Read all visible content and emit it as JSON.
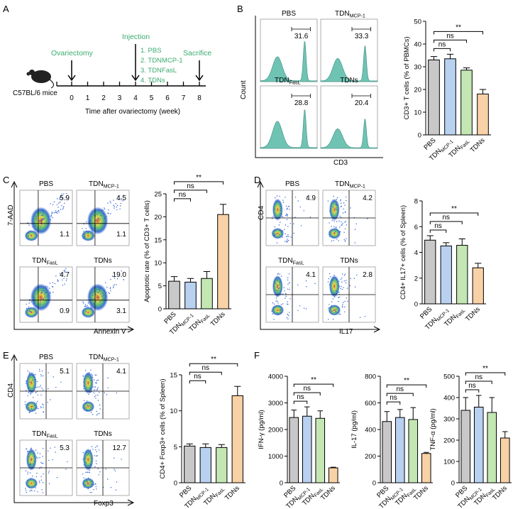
{
  "panels": {
    "A": "A",
    "B": "B",
    "C": "C",
    "D": "D",
    "E": "E",
    "F": "F"
  },
  "colors": {
    "pbs": "#c8c8c8",
    "mcp": "#b8d1f0",
    "fasl": "#c3e6b3",
    "tdn": "#f8d1a6",
    "green": "#3bab6f",
    "hist": "#6fc3b3"
  },
  "timeline": {
    "ticks": [
      "0",
      "1",
      "2",
      "3",
      "4",
      "5",
      "6",
      "7",
      "8"
    ],
    "xlabel": "Time after ovariectomy (week)",
    "mice": "C57BL/6 mice",
    "ovariectomy": "Ovariectomy",
    "injection": "Injection",
    "sacrifice": "Sacrifice",
    "groups": [
      "1. PBS",
      "2. TDNMCP-1",
      "3. TDNFasL",
      "4. TDNs"
    ]
  },
  "labels": {
    "pbs": "PBS",
    "tdn_base": "TDN",
    "mcp_sub": "MCP-1",
    "fasl_sub": "FasL",
    "tdns": "TDNs"
  },
  "flowB": {
    "ylabel": "Count",
    "xlabel": "CD3",
    "values": [
      "31.6",
      "33.3",
      "28.8",
      "20.4"
    ]
  },
  "flowC": {
    "ylabel": "7-AAD",
    "xlabel": "Annexin V",
    "pbs": [
      "5.9",
      "1.1"
    ],
    "mcp": [
      "4.5",
      "1.1"
    ],
    "fasl": [
      "4.7",
      "0.9"
    ],
    "tdn": [
      "19.0",
      "3.1"
    ]
  },
  "flowD": {
    "ylabel": "CD4",
    "xlabel": "IL17",
    "values": [
      "4.9",
      "4.2",
      "4.1",
      "2.8"
    ]
  },
  "flowE": {
    "ylabel": "CD4",
    "xlabel": "Foxp3",
    "values": [
      "5.1",
      "4.1",
      "5.3",
      "12.7"
    ]
  },
  "sig": {
    "ns": "ns",
    "star": "**"
  },
  "chart_data": [
    {
      "id": "B",
      "type": "bar",
      "categories": [
        "PBS",
        "TDNMCP-1",
        "TDNFasL",
        "TDNs"
      ],
      "values": [
        33,
        33.5,
        28.5,
        18
      ],
      "errors": [
        1.5,
        2,
        1,
        2
      ],
      "ylabel": "CD3+ T cells (% of PBMCs)",
      "ylim": [
        0,
        50
      ],
      "yticks": [
        "0",
        "10",
        "20",
        "30",
        "40",
        "50"
      ]
    },
    {
      "id": "C",
      "type": "bar",
      "categories": [
        "PBS",
        "TDNMCP-1",
        "TDNFasL",
        "TDNs"
      ],
      "values": [
        6,
        5.8,
        6.6,
        20.5
      ],
      "errors": [
        1,
        0.8,
        1.5,
        2.2
      ],
      "ylabel": "Apoptotic rate (% of CD3+ T cells)",
      "ylim": [
        0,
        25
      ],
      "yticks": [
        "0",
        "5",
        "10",
        "15",
        "20",
        "25"
      ]
    },
    {
      "id": "D",
      "type": "bar",
      "categories": [
        "PBS",
        "TDNMCP-1",
        "TDNFasL",
        "TDNs"
      ],
      "values": [
        4.95,
        4.5,
        4.55,
        2.8
      ],
      "errors": [
        0.35,
        0.25,
        0.5,
        0.35
      ],
      "ylabel": "CD4+ IL17+ cells (% of Spleen)",
      "ylim": [
        0,
        8
      ],
      "yticks": [
        "0",
        "2",
        "4",
        "6",
        "8"
      ]
    },
    {
      "id": "E",
      "type": "bar",
      "categories": [
        "PBS",
        "TDNMCP-1",
        "TDNFasL",
        "TDNs"
      ],
      "values": [
        5.1,
        4.9,
        4.9,
        12.1
      ],
      "errors": [
        0.3,
        0.5,
        0.4,
        1.3
      ],
      "ylabel": "CD4+ Foxp3+ cells (% of Spleen)",
      "ylim": [
        0,
        15
      ],
      "yticks": [
        "0",
        "5",
        "10",
        "15"
      ]
    },
    {
      "id": "F1",
      "type": "bar",
      "categories": [
        "PBS",
        "TDNMCP-1",
        "TDNFasL",
        "TDNs"
      ],
      "values": [
        2450,
        2500,
        2420,
        560
      ],
      "errors": [
        280,
        350,
        280,
        25
      ],
      "ylabel": "IFN-γ (pg/ml)",
      "ylim": [
        0,
        4000
      ],
      "yticks": [
        "0",
        "1000",
        "2000",
        "3000",
        "4000"
      ]
    },
    {
      "id": "F2",
      "type": "bar",
      "categories": [
        "PBS",
        "TDNMCP-1",
        "TDNFasL",
        "TDNs"
      ],
      "values": [
        460,
        490,
        475,
        220
      ],
      "errors": [
        75,
        60,
        90,
        8
      ],
      "ylabel": "IL-17 (pg/ml)",
      "ylim": [
        0,
        800
      ],
      "yticks": [
        "0",
        "200",
        "400",
        "600",
        "800"
      ]
    },
    {
      "id": "F3",
      "type": "bar",
      "categories": [
        "PBS",
        "TDNMCP-1",
        "TDNFasL",
        "TDNs"
      ],
      "values": [
        340,
        355,
        330,
        210
      ],
      "errors": [
        60,
        55,
        70,
        30
      ],
      "ylabel": "TNF-α (pg/ml)",
      "ylim": [
        0,
        500
      ],
      "yticks": [
        "0",
        "100",
        "200",
        "300",
        "400",
        "500"
      ]
    }
  ]
}
